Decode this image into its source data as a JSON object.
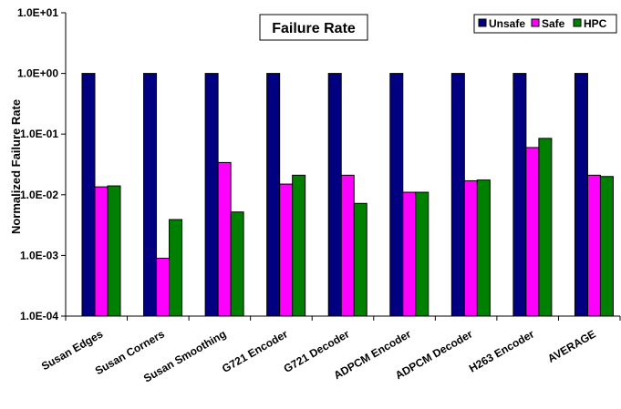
{
  "chart_data": {
    "type": "bar",
    "title": "Failure Rate",
    "ylabel": "Normalized Failure Rate",
    "xlabel": "",
    "yscale": "log",
    "ylim": [
      0.0001,
      10
    ],
    "ytick_labels": [
      "1.0E-04",
      "1.0E-03",
      "1.0E-02",
      "1.0E-01",
      "1.0E+00",
      "1.0E+01"
    ],
    "ytick_values": [
      0.0001,
      0.001,
      0.01,
      0.1,
      1,
      10
    ],
    "grid": false,
    "legend_position": "top-right",
    "categories": [
      "Susan Edges",
      "Susan Corners",
      "Susan Smoothing",
      "G721 Encoder",
      "G721 Decoder",
      "ADPCM Encoder",
      "ADPCM Decoder",
      "H263 Encoder",
      "AVERAGE"
    ],
    "series": [
      {
        "name": "Unsafe",
        "color": "#000080",
        "values": [
          1,
          1,
          1,
          1,
          1,
          1,
          1,
          1,
          1
        ]
      },
      {
        "name": "Safe",
        "color": "#ff00ff",
        "values": [
          0.0135,
          0.0009,
          0.034,
          0.015,
          0.021,
          0.011,
          0.017,
          0.06,
          0.021
        ]
      },
      {
        "name": "HPC",
        "color": "#008000",
        "values": [
          0.014,
          0.0039,
          0.0052,
          0.021,
          0.0072,
          0.011,
          0.0175,
          0.085,
          0.02
        ]
      }
    ]
  }
}
